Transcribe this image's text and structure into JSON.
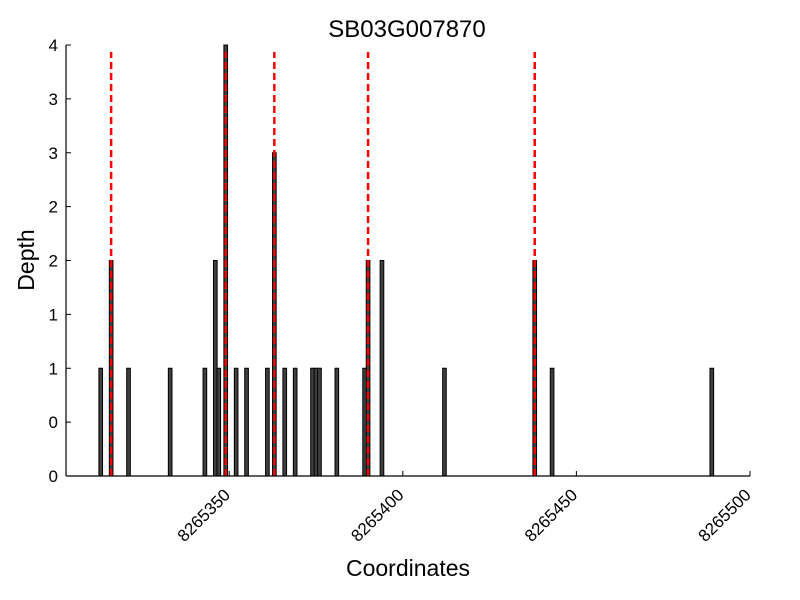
{
  "chart_data": {
    "type": "bar",
    "title": "SB03G007870",
    "xlabel": "Coordinates",
    "ylabel": "Depth",
    "xlim": [
      8265303,
      8265500
    ],
    "ylim": [
      0,
      4
    ],
    "x_ticks": [
      8265350,
      8265400,
      8265450,
      8265500
    ],
    "y_tick_labels": [
      "0",
      "0",
      "1",
      "1",
      "2",
      "2",
      "3",
      "3",
      "4"
    ],
    "y_tick_values": [
      0,
      0.5,
      1,
      1.5,
      2,
      2.5,
      3,
      3.5,
      4
    ],
    "grid": false,
    "bar_color": "#404040",
    "marker_color": "#ff0000",
    "bars": [
      {
        "x": 8265313,
        "y": 1
      },
      {
        "x": 8265316,
        "y": 2
      },
      {
        "x": 8265321,
        "y": 1
      },
      {
        "x": 8265333,
        "y": 1
      },
      {
        "x": 8265343,
        "y": 1
      },
      {
        "x": 8265346,
        "y": 2
      },
      {
        "x": 8265347,
        "y": 1
      },
      {
        "x": 8265349,
        "y": 4
      },
      {
        "x": 8265352,
        "y": 1
      },
      {
        "x": 8265355,
        "y": 1
      },
      {
        "x": 8265361,
        "y": 1
      },
      {
        "x": 8265363,
        "y": 3
      },
      {
        "x": 8265366,
        "y": 1
      },
      {
        "x": 8265369,
        "y": 1
      },
      {
        "x": 8265374,
        "y": 1
      },
      {
        "x": 8265375,
        "y": 1
      },
      {
        "x": 8265376,
        "y": 1
      },
      {
        "x": 8265381,
        "y": 1
      },
      {
        "x": 8265389,
        "y": 1
      },
      {
        "x": 8265390,
        "y": 2
      },
      {
        "x": 8265394,
        "y": 2
      },
      {
        "x": 8265412,
        "y": 1
      },
      {
        "x": 8265438,
        "y": 2
      },
      {
        "x": 8265443,
        "y": 1
      },
      {
        "x": 8265489,
        "y": 1
      }
    ],
    "markers": [
      8265316,
      8265349,
      8265363,
      8265390,
      8265438
    ]
  }
}
